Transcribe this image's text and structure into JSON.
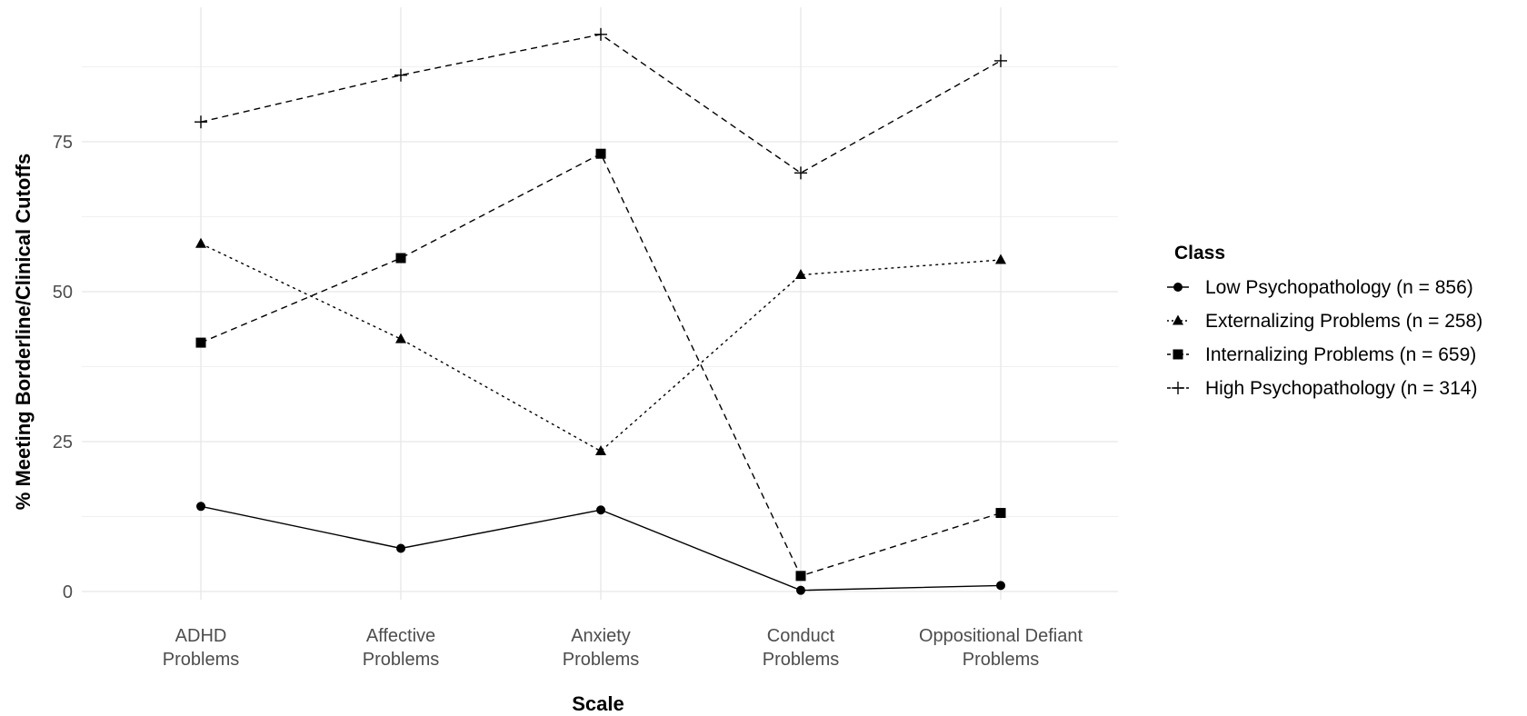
{
  "chart_data": {
    "type": "line",
    "xlabel": "Scale",
    "ylabel": "% Meeting Borderline/Clinical Cutoffs",
    "categories": [
      [
        "ADHD",
        "Problems"
      ],
      [
        "Affective",
        "Problems"
      ],
      [
        "Anxiety",
        "Problems"
      ],
      [
        "Conduct",
        "Problems"
      ],
      [
        "Oppositional Defiant",
        "Problems"
      ]
    ],
    "ylim": [
      -2,
      98
    ],
    "yticks": [
      0,
      25,
      50,
      75
    ],
    "grid": true,
    "legend": {
      "title": "Class",
      "position": "right"
    },
    "series": [
      {
        "name": "Low Psychopathology (n = 856)",
        "marker": "circle",
        "linestyle": "solid",
        "values": [
          14.2,
          7.2,
          13.6,
          0.2,
          1.0
        ]
      },
      {
        "name": "Externalizing Problems (n = 258)",
        "marker": "triangle",
        "linestyle": "dotted",
        "values": [
          58.0,
          42.1,
          23.4,
          52.8,
          55.3
        ]
      },
      {
        "name": "Internalizing Problems (n = 659)",
        "marker": "square",
        "linestyle": "dashed",
        "values": [
          41.5,
          55.6,
          73.0,
          2.6,
          13.1
        ]
      },
      {
        "name": "High Psychopathology (n = 314)",
        "marker": "plus",
        "linestyle": "dashed",
        "values": [
          78.3,
          86.1,
          92.9,
          69.8,
          88.5
        ]
      }
    ]
  }
}
